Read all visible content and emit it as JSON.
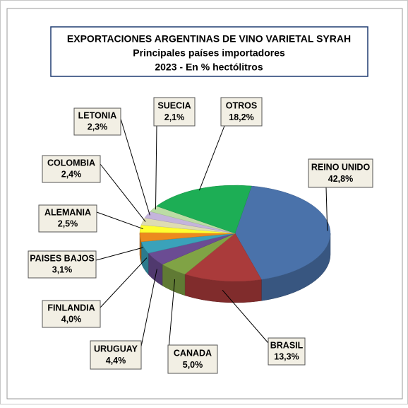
{
  "chart_data": {
    "type": "pie",
    "title": "EXPORTACIONES ARGENTINAS DE VINO VARIETAL SYRAH",
    "subtitle": "Principales  países importadores",
    "note": "2023 - En % hectólitros",
    "categories": [
      "REINO UNIDO",
      "BRASIL",
      "CANADA",
      "URUGUAY",
      "FINLANDIA",
      "PAISES BAJOS",
      "ALEMANIA",
      "COLOMBIA",
      "LETONIA",
      "SUECIA",
      "OTROS"
    ],
    "values": [
      42.8,
      13.3,
      5.0,
      4.4,
      4.0,
      3.1,
      2.5,
      2.4,
      2.3,
      2.1,
      18.2
    ],
    "value_labels": [
      "42,8%",
      "13,3%",
      "5,0%",
      "4,4%",
      "4,0%",
      "3,1%",
      "2,5%",
      "2,4%",
      "2,3%",
      "2,1%",
      "18,2%"
    ],
    "colors": [
      "#4a72aa",
      "#aa3b3b",
      "#80a345",
      "#6b4c93",
      "#3aa2ba",
      "#ec8a1e",
      "#ffff30",
      "#dedcb2",
      "#c4b4dc",
      "#bcdca4",
      "#1dae55"
    ]
  }
}
